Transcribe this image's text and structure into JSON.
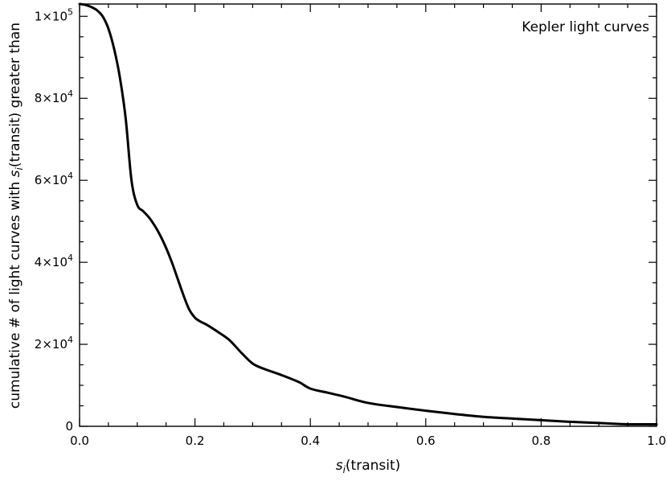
{
  "chart_data": {
    "type": "line",
    "title": "",
    "annotation": "Kepler light curves",
    "xlabel": {
      "symbol": "s",
      "subscript": "i",
      "suffix": "(transit)"
    },
    "ylabel": {
      "prefix": "cumulative # of light curves with ",
      "symbol": "s",
      "subscript": "i",
      "suffix": "(transit)  greater than"
    },
    "xlim": [
      0.0,
      1.0
    ],
    "ylim": [
      0,
      103000
    ],
    "x_ticks": [
      {
        "value": 0.0,
        "label": "0.0"
      },
      {
        "value": 0.2,
        "label": "0.2"
      },
      {
        "value": 0.4,
        "label": "0.4"
      },
      {
        "value": 0.6,
        "label": "0.6"
      },
      {
        "value": 0.8,
        "label": "0.8"
      },
      {
        "value": 1.0,
        "label": "1.0"
      }
    ],
    "y_ticks": [
      {
        "value": 0,
        "mantissa": "0",
        "exponent": ""
      },
      {
        "value": 20000,
        "mantissa": "2×10",
        "exponent": "4"
      },
      {
        "value": 40000,
        "mantissa": "4×10",
        "exponent": "4"
      },
      {
        "value": 60000,
        "mantissa": "6×10",
        "exponent": "4"
      },
      {
        "value": 80000,
        "mantissa": "8×10",
        "exponent": "4"
      },
      {
        "value": 100000,
        "mantissa": "1×10",
        "exponent": "5"
      }
    ],
    "series": [
      {
        "color": "#000000",
        "x": [
          0.0,
          0.01,
          0.02,
          0.03,
          0.04,
          0.05,
          0.06,
          0.07,
          0.08,
          0.09,
          0.1,
          0.11,
          0.12,
          0.13,
          0.14,
          0.15,
          0.16,
          0.17,
          0.18,
          0.19,
          0.2,
          0.21,
          0.22,
          0.24,
          0.26,
          0.28,
          0.3,
          0.32,
          0.35,
          0.38,
          0.4,
          0.43,
          0.46,
          0.5,
          0.55,
          0.6,
          0.65,
          0.7,
          0.75,
          0.8,
          0.85,
          0.9,
          0.95,
          1.0
        ],
        "y": [
          103000,
          102800,
          102300,
          101500,
          100000,
          97000,
          92000,
          85000,
          75000,
          60000,
          54000,
          52500,
          51000,
          49000,
          46500,
          43500,
          40000,
          36000,
          32000,
          28500,
          26500,
          25500,
          24800,
          23000,
          21000,
          18000,
          15300,
          14000,
          12500,
          10800,
          9200,
          8200,
          7200,
          5700,
          4700,
          3800,
          3000,
          2300,
          1900,
          1500,
          1100,
          800,
          500,
          500
        ]
      }
    ],
    "grid": false,
    "legend_position": "top-right"
  }
}
